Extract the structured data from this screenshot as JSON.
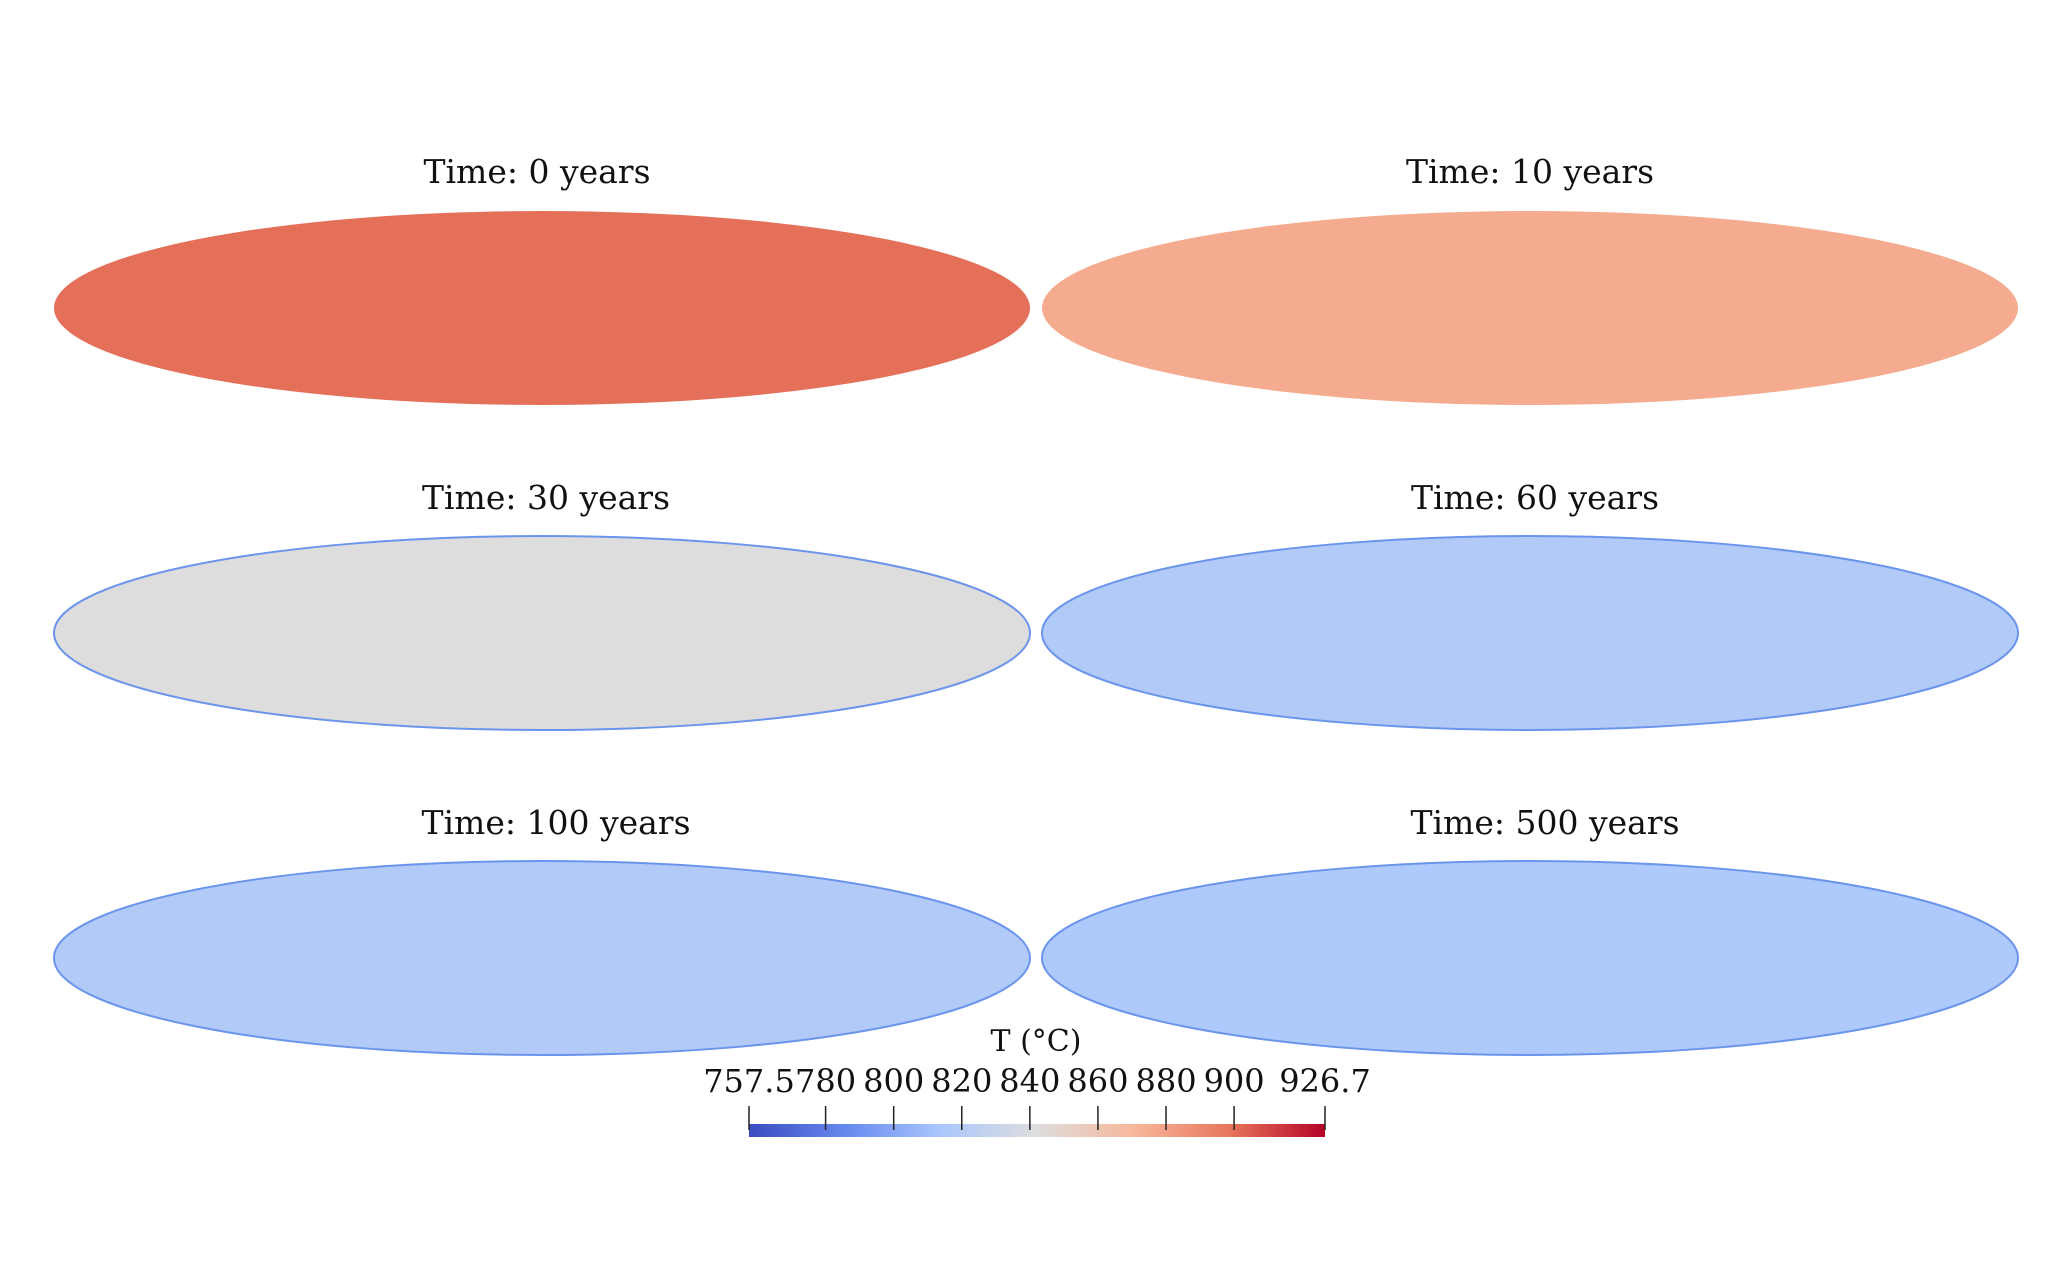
{
  "panels": [
    {
      "title": "Time: 0 years",
      "temperature_c": 900
    },
    {
      "title": "Time: 10 years",
      "temperature_c": 876
    },
    {
      "title": "Time: 30 years",
      "temperature_c": 842
    },
    {
      "title": "Time: 60 years",
      "temperature_c": 818
    },
    {
      "title": "Time: 100 years",
      "temperature_c": 818
    },
    {
      "title": "Time: 500 years",
      "temperature_c": 816
    }
  ],
  "colorbar": {
    "title": "T (°C)",
    "min": 757.5,
    "max": 926.7,
    "tick_labels": [
      "757.5",
      "780",
      "800",
      "820",
      "840",
      "860",
      "880",
      "900",
      "926.7"
    ],
    "tick_values": [
      757.5,
      780,
      800,
      820,
      840,
      860,
      880,
      900,
      926.7
    ],
    "colormap": [
      "#3b4cc0",
      "#6688ee",
      "#aac7fd",
      "#dddddd",
      "#f7b89c",
      "#e8765c",
      "#b40426"
    ]
  },
  "colors": {
    "background": "#ffffff",
    "text": "#111111",
    "cold_edge": "#6b95ec"
  }
}
